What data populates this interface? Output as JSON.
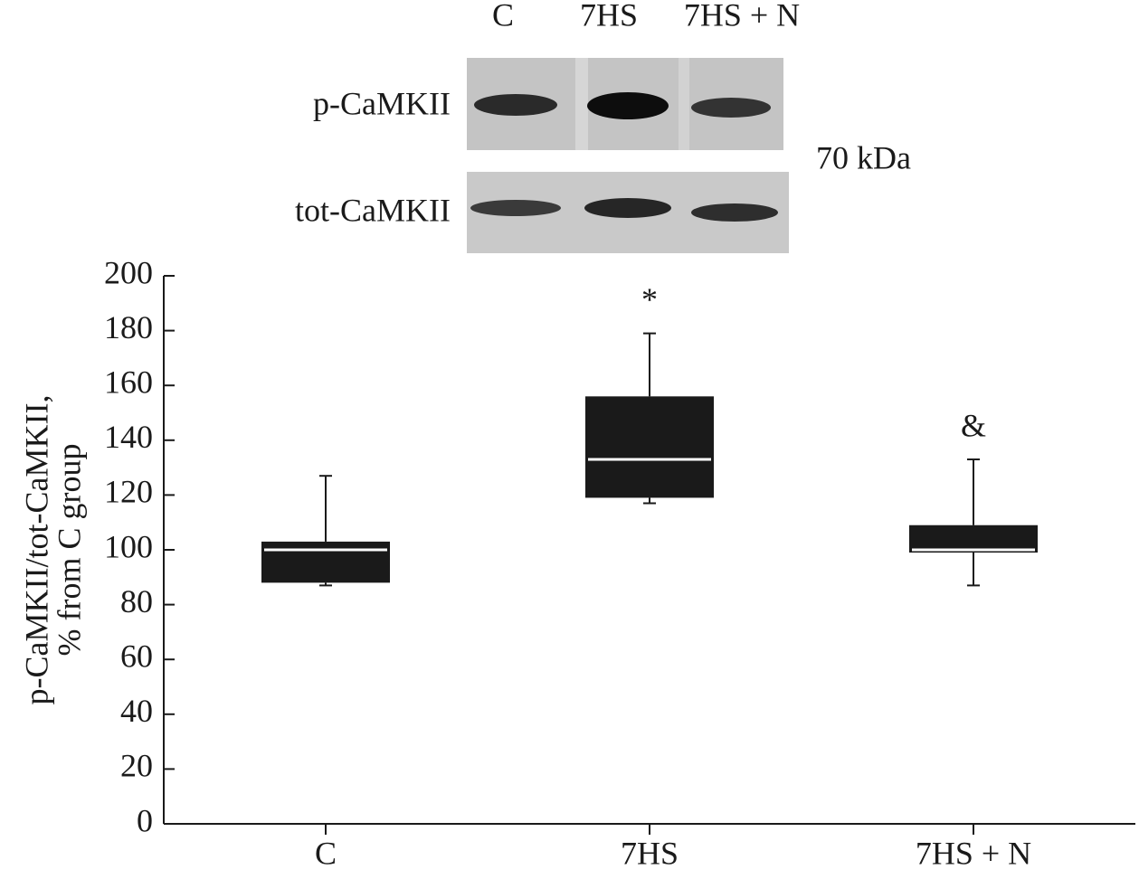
{
  "chart_data": {
    "type": "box",
    "ylabel": [
      "p-CaMKII/tot-CaMKII,",
      "% from C group"
    ],
    "categories": [
      "C",
      "7HS",
      "7HS + N"
    ],
    "min": [
      87,
      117,
      87
    ],
    "q1": [
      88,
      119,
      99
    ],
    "median": [
      100,
      133,
      100
    ],
    "q3": [
      103,
      156,
      109
    ],
    "max": [
      127,
      179,
      133
    ],
    "annotations": [
      null,
      "*",
      "&"
    ],
    "color": "#1a1a1a",
    "median_color": "#ffffff",
    "ylim": [
      0,
      200
    ],
    "yticks": [
      0,
      20,
      40,
      60,
      80,
      100,
      120,
      140,
      160,
      180,
      200
    ]
  },
  "blot": {
    "lanes": [
      "C",
      "7HS",
      "7HS + N"
    ],
    "rows": [
      "p-CaMKII",
      "tot-CaMKII"
    ],
    "size_label": "70 kDa"
  }
}
